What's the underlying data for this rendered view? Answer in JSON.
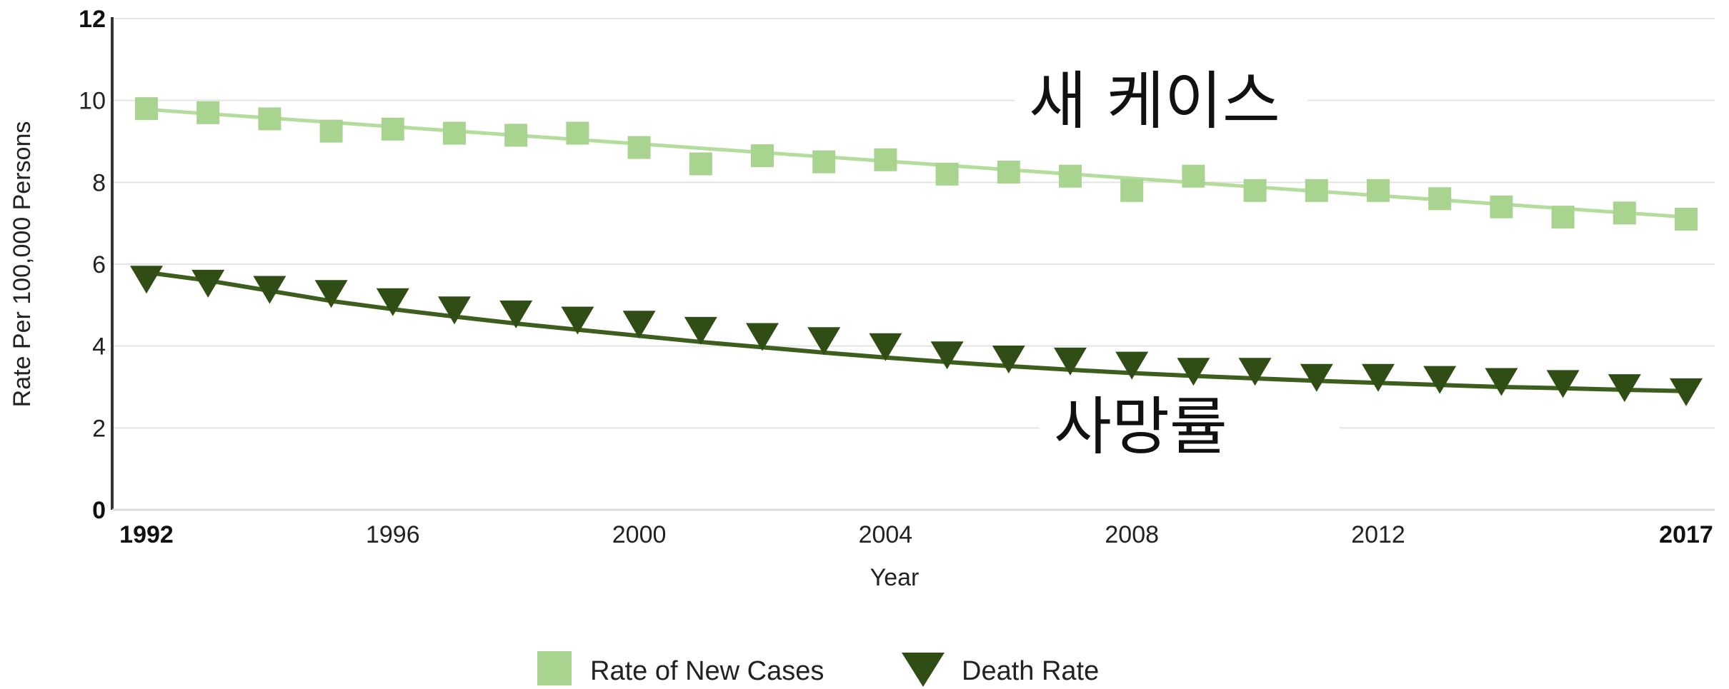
{
  "chart_data": {
    "type": "line",
    "x": [
      1992,
      1993,
      1994,
      1995,
      1996,
      1997,
      1998,
      1999,
      2000,
      2001,
      2002,
      2003,
      2004,
      2005,
      2006,
      2007,
      2008,
      2009,
      2010,
      2011,
      2012,
      2013,
      2014,
      2015,
      2016,
      2017
    ],
    "xlabel": "Year",
    "ylabel": "Rate Per 100,000 Persons",
    "ylim": [
      0,
      12
    ],
    "xlim": [
      1992,
      2017
    ],
    "yticks": [
      "0",
      "2",
      "4",
      "6",
      "8",
      "10",
      "12"
    ],
    "xticks": [
      "1992",
      "1996",
      "2000",
      "2004",
      "2008",
      "2012",
      "2017"
    ],
    "grid": true,
    "legend_position": "bottom-center",
    "series": [
      {
        "name": "Rate of New Cases",
        "color": "#a8d490",
        "line_color": "#b4dc9c",
        "marker": "square",
        "values": [
          9.8,
          9.7,
          9.55,
          9.25,
          9.3,
          9.2,
          9.15,
          9.2,
          8.85,
          8.45,
          8.65,
          8.5,
          8.55,
          8.2,
          8.25,
          8.15,
          7.8,
          8.15,
          7.8,
          7.8,
          7.8,
          7.6,
          7.4,
          7.15,
          7.25,
          7.1
        ],
        "trend": [
          9.78,
          7.15
        ]
      },
      {
        "name": "Death Rate",
        "color": "#2f4d14",
        "line_color": "#3d5e1c",
        "marker": "triangle-down",
        "values": [
          5.7,
          5.6,
          5.45,
          5.35,
          5.15,
          4.95,
          4.85,
          4.7,
          4.6,
          4.45,
          4.3,
          4.2,
          4.05,
          3.85,
          3.75,
          3.7,
          3.6,
          3.45,
          3.45,
          3.3,
          3.3,
          3.25,
          3.2,
          3.15,
          3.05,
          2.95
        ],
        "trend": [
          5.8,
          5.6,
          5.35,
          5.1,
          4.9,
          4.72,
          4.55,
          4.4,
          4.25,
          4.1,
          3.97,
          3.84,
          3.72,
          3.61,
          3.51,
          3.42,
          3.34,
          3.27,
          3.21,
          3.15,
          3.1,
          3.05,
          3.0,
          2.97,
          2.93,
          2.9
        ]
      }
    ],
    "annotations": [
      {
        "text": "새 케이스",
        "anchor_year": 2009,
        "anchor_value": 10
      },
      {
        "text": "사망률",
        "anchor_year": 2009,
        "anchor_value": 2
      }
    ]
  }
}
